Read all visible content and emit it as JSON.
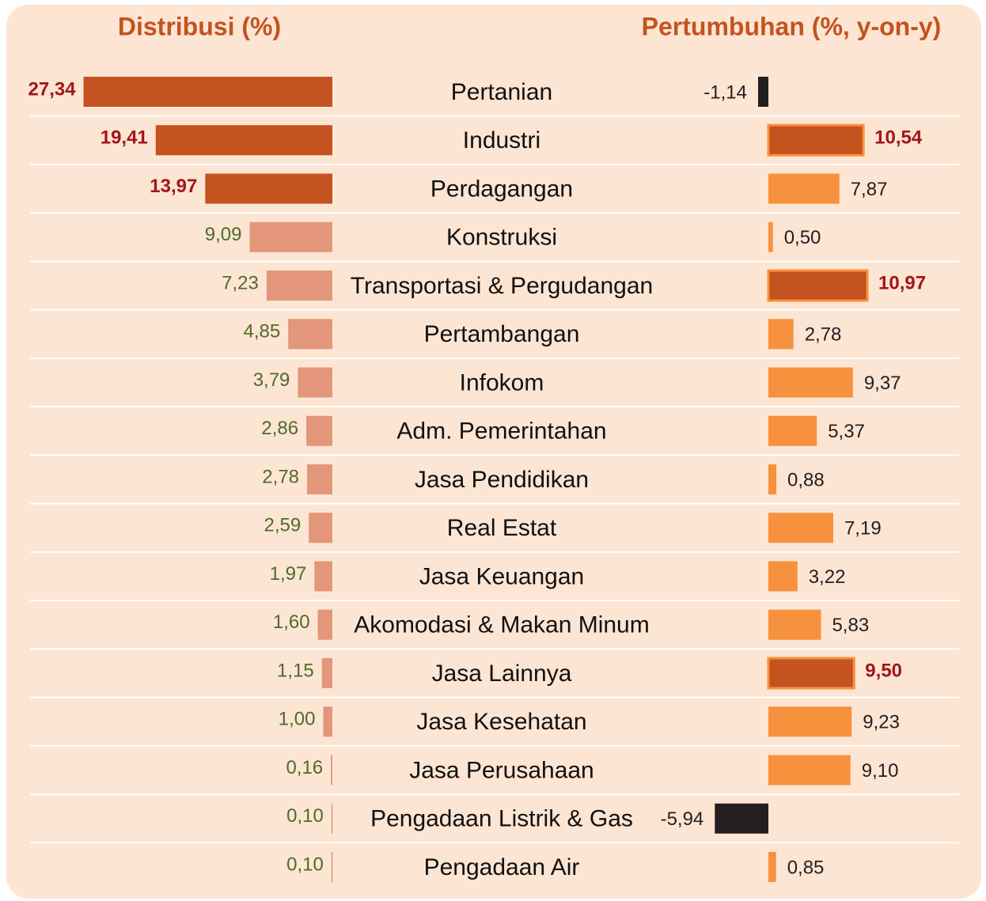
{
  "chart_data": {
    "type": "bar",
    "orientation": "horizontal",
    "categories": [
      "Pertanian",
      "Industri",
      "Perdagangan",
      "Konstruksi",
      "Transportasi & Pergudangan",
      "Pertambangan",
      "Infokom",
      "Adm. Pemerintahan",
      "Jasa Pendidikan",
      "Real Estat",
      "Jasa Keuangan",
      "Akomodasi & Makan Minum",
      "Jasa Lainnya",
      "Jasa Kesehatan",
      "Jasa Perusahaan",
      "Pengadaan Listrik & Gas",
      "Pengadaan Air"
    ],
    "series": [
      {
        "name": "Distribusi (%)",
        "values": [
          27.34,
          19.41,
          13.97,
          9.09,
          7.23,
          4.85,
          3.79,
          2.86,
          2.78,
          2.59,
          1.97,
          1.6,
          1.15,
          1.0,
          0.16,
          0.1,
          0.1
        ],
        "value_labels": [
          "27,34",
          "19,41",
          "13,97",
          "9,09",
          "7,23",
          "4,85",
          "3,79",
          "2,86",
          "2,78",
          "2,59",
          "1,97",
          "1,60",
          "1,15",
          "1,00",
          "0,16",
          "0,10",
          "0,10"
        ],
        "colors": [
          "#c4531f",
          "#c4531f",
          "#c4531f",
          "#e3967a",
          "#e3967a",
          "#e3967a",
          "#e3967a",
          "#e3967a",
          "#e3967a",
          "#e3967a",
          "#e3967a",
          "#e3967a",
          "#e3967a",
          "#e3967a",
          "#e3967a",
          "#e3967a",
          "#e3967a"
        ],
        "label_colors": [
          "#a3151b",
          "#a3151b",
          "#a3151b",
          "#4f6b2a",
          "#4f6b2a",
          "#4f6b2a",
          "#4f6b2a",
          "#4f6b2a",
          "#4f6b2a",
          "#4f6b2a",
          "#4f6b2a",
          "#4f6b2a",
          "#4f6b2a",
          "#4f6b2a",
          "#4f6b2a",
          "#4f6b2a",
          "#4f6b2a"
        ]
      },
      {
        "name": "Pertumbuhan (%, y-on-y)",
        "values": [
          -1.14,
          10.54,
          7.87,
          0.5,
          10.97,
          2.78,
          9.37,
          5.37,
          0.88,
          7.19,
          3.22,
          5.83,
          9.5,
          9.23,
          9.1,
          -5.94,
          0.85
        ],
        "value_labels": [
          "-1,14",
          "10,54",
          "7,87",
          "0,50",
          "10,97",
          "2,78",
          "9,37",
          "5,37",
          "0,88",
          "7,19",
          "3,22",
          "5,83",
          "9,50",
          "9,23",
          "9,10",
          "-5,94",
          "0,85"
        ],
        "colors": [
          "#231f20",
          "#c4531f",
          "#f7913d",
          "#f7913d",
          "#c4531f",
          "#f7913d",
          "#f7913d",
          "#f7913d",
          "#f7913d",
          "#f7913d",
          "#f7913d",
          "#f7913d",
          "#c4531f",
          "#f7913d",
          "#f7913d",
          "#231f20",
          "#f7913d"
        ],
        "label_colors": [
          "#231f20",
          "#a3151b",
          "#231f20",
          "#231f20",
          "#a3151b",
          "#231f20",
          "#231f20",
          "#231f20",
          "#231f20",
          "#231f20",
          "#231f20",
          "#231f20",
          "#a3151b",
          "#231f20",
          "#231f20",
          "#231f20",
          "#231f20"
        ]
      }
    ]
  }
}
